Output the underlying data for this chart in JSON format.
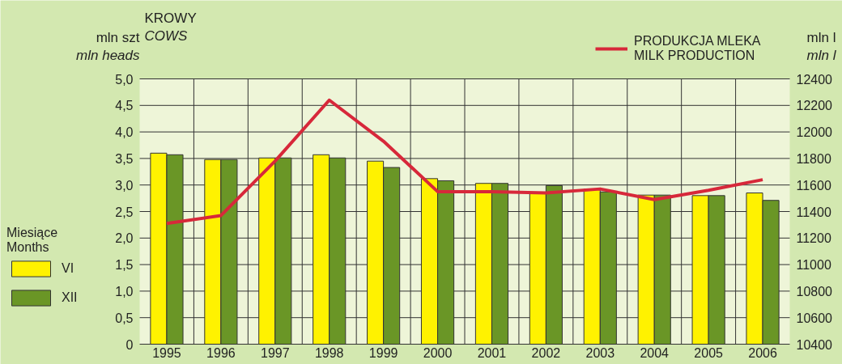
{
  "chart_data": {
    "type": "bar",
    "title": "KROWY\nCOWS",
    "ylabel": "mln szt\nmln heads",
    "y2label": "mln l\nmln l",
    "legend_title": "Miesiące\nMonths",
    "categories": [
      "1995",
      "1996",
      "1997",
      "1998",
      "1999",
      "2000",
      "2001",
      "2002",
      "2003",
      "2004",
      "2005",
      "2006"
    ],
    "series": [
      {
        "name": "VI",
        "color": "#fff200",
        "values": [
          3.6,
          3.48,
          3.51,
          3.57,
          3.45,
          3.12,
          3.03,
          2.86,
          2.92,
          2.81,
          2.8,
          2.85
        ]
      },
      {
        "name": "XII",
        "color": "#6a9626",
        "values": [
          3.57,
          3.48,
          3.51,
          3.51,
          3.33,
          3.08,
          3.03,
          2.99,
          2.87,
          2.81,
          2.8,
          2.71
        ]
      },
      {
        "name": "PRODUKCJA MLEKA\nMILK PRODUCTION",
        "type": "line",
        "axis": "y2",
        "color": "#d7283a",
        "values": [
          11310,
          11370,
          11780,
          12240,
          11930,
          11550,
          11550,
          11540,
          11570,
          11490,
          11560,
          11640
        ]
      }
    ],
    "ylim": [
      0,
      5
    ],
    "yticks": [
      0,
      {
        "value": 0.5,
        "label": "0,5"
      },
      {
        "value": 1,
        "label": "1,0"
      },
      {
        "value": 1.5,
        "label": "1,5"
      },
      {
        "value": 2,
        "label": "2,0"
      },
      {
        "value": 2.5,
        "label": "2,5"
      },
      {
        "value": 3,
        "label": "3,0"
      },
      {
        "value": 3.5,
        "label": "3,5"
      },
      {
        "value": 4,
        "label": "4,0"
      },
      {
        "value": 4.5,
        "label": "4,5"
      },
      {
        "value": 5,
        "label": "5,0"
      }
    ],
    "y2lim": [
      10400,
      12400
    ],
    "y2ticks": [
      10400,
      10600,
      10800,
      11000,
      11200,
      11400,
      11600,
      11800,
      12000,
      12200,
      12400
    ],
    "grid": true,
    "legend": "left"
  }
}
